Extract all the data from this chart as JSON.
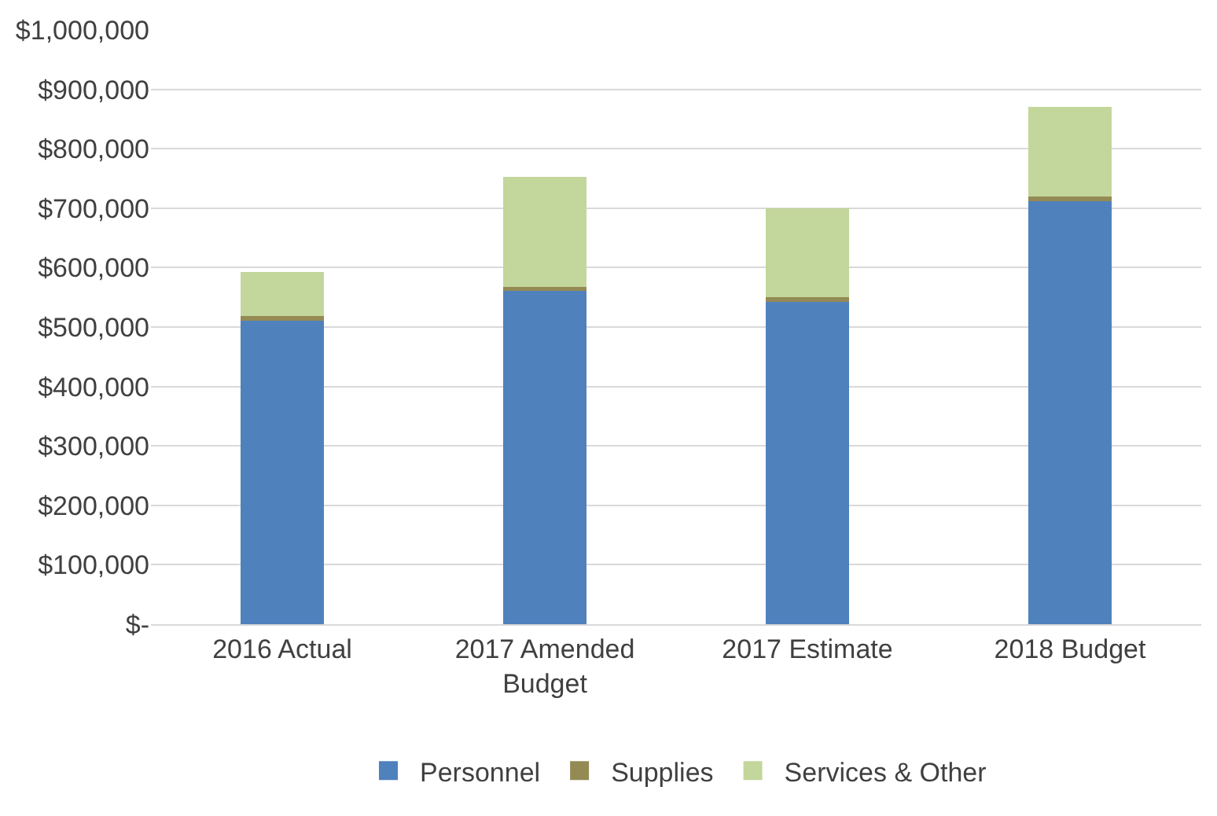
{
  "chart_data": {
    "type": "bar",
    "stacked": true,
    "categories": [
      "2016 Actual",
      "2017 Amended Budget",
      "2017 Estimate",
      "2018 Budget"
    ],
    "series": [
      {
        "name": "Personnel",
        "color": "#4f81bd",
        "values": [
          510000,
          563000,
          543000,
          712000
        ]
      },
      {
        "name": "Supplies",
        "color": "#948a54",
        "values": [
          8000,
          5000,
          7000,
          7000
        ]
      },
      {
        "name": "Services & Other",
        "color": "#c3d69b",
        "values": [
          75000,
          185000,
          150000,
          151000
        ]
      }
    ],
    "ylim": [
      0,
      1000000
    ],
    "yticks": [
      {
        "value": 0,
        "label": "$-"
      },
      {
        "value": 100000,
        "label": "$100,000"
      },
      {
        "value": 200000,
        "label": "$200,000"
      },
      {
        "value": 300000,
        "label": "$300,000"
      },
      {
        "value": 400000,
        "label": "$400,000"
      },
      {
        "value": 500000,
        "label": "$500,000"
      },
      {
        "value": 600000,
        "label": "$600,000"
      },
      {
        "value": 700000,
        "label": "$700,000"
      },
      {
        "value": 800000,
        "label": "$800,000"
      },
      {
        "value": 900000,
        "label": "$900,000"
      },
      {
        "value": 1000000,
        "label": "$1,000,000"
      }
    ],
    "grid": "y",
    "legend": "bottom"
  }
}
